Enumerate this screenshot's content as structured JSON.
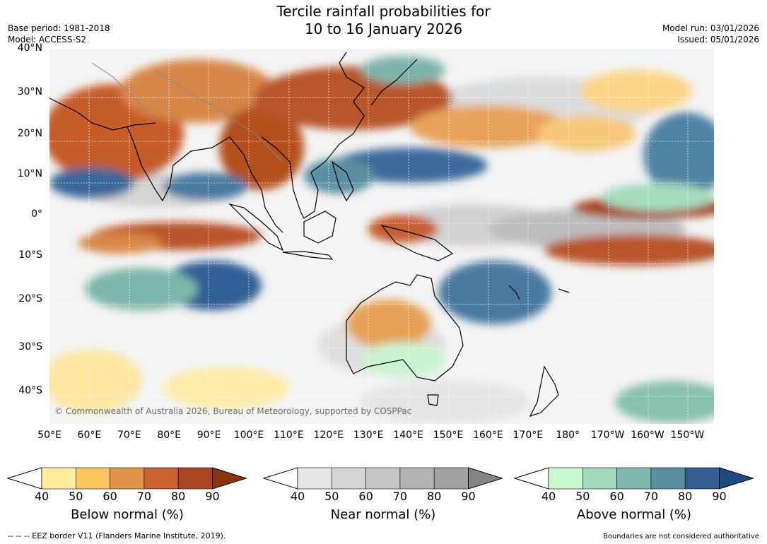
{
  "title": {
    "line1": "Tercile rainfall probabilities for",
    "line2": "10 to 16 January 2026"
  },
  "meta": {
    "base_period": "Base period: 1981-2018",
    "model": "Model: ACCESS-S2",
    "model_run": "Model run: 03/01/2026",
    "issued": "Issued: 05/01/2026"
  },
  "map": {
    "lat_labels": [
      "40°N",
      "30°N",
      "20°N",
      "10°N",
      "0°",
      "10°S",
      "20°S",
      "30°S",
      "40°S"
    ],
    "lon_labels": [
      "50°E",
      "60°E",
      "70°E",
      "80°E",
      "90°E",
      "100°E",
      "110°E",
      "120°E",
      "130°E",
      "140°E",
      "150°E",
      "160°E",
      "170°E",
      "180°",
      "170°W",
      "160°W",
      "150°W"
    ],
    "copyright": "© Commonwealth of Australia 2026, Bureau of Meteorology, supported by COSPPac"
  },
  "colorbars": [
    {
      "id": "below",
      "label": "Below normal (%)",
      "ticks": [
        "40",
        "50",
        "60",
        "70",
        "80",
        "90"
      ],
      "colors": [
        "#ffeea0",
        "#fdc661",
        "#e0954a",
        "#cc6232",
        "#aa4622"
      ],
      "extend_color": "#8a3412"
    },
    {
      "id": "near",
      "label": "Near normal (%)",
      "ticks": [
        "40",
        "50",
        "60",
        "70",
        "80",
        "90"
      ],
      "colors": [
        "#e6e6e6",
        "#d6d6d6",
        "#c6c6c6",
        "#b3b3b3",
        "#a1a1a1"
      ],
      "extend_color": "#858585"
    },
    {
      "id": "above",
      "label": "Above normal (%)",
      "ticks": [
        "40",
        "50",
        "60",
        "70",
        "80",
        "90"
      ],
      "colors": [
        "#c9f7d0",
        "#a3d9bc",
        "#7fb8ac",
        "#598f9e",
        "#355f92"
      ],
      "extend_color": "#1e4a82"
    }
  ],
  "footer": {
    "left": "--  --  -- EEZ border V11 (Flanders Marine Institute, 2019).",
    "right": "Boundaries are not considered authoritative"
  }
}
